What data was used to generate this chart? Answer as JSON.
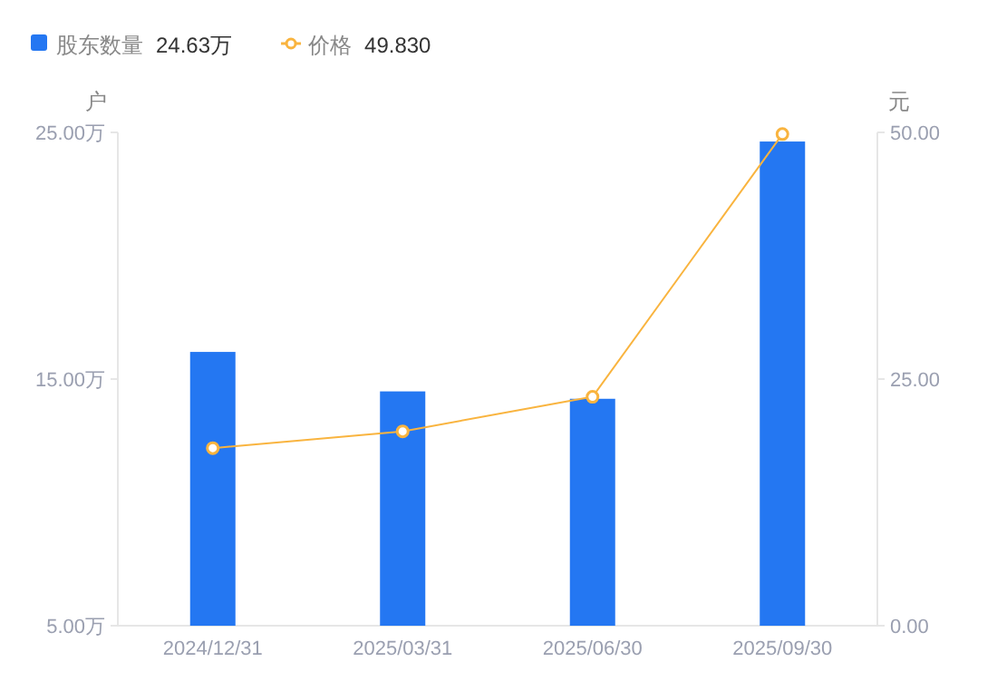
{
  "chart_data": {
    "type": "bar",
    "ylabel": "户",
    "y2label": "元",
    "categories": [
      "2024/12/31",
      "2025/03/31",
      "2025/06/30",
      "2025/09/30"
    ],
    "series": [
      {
        "name": "股东数量",
        "color": "#2477f2",
        "values": [
          16.1,
          14.5,
          14.2,
          24.63
        ]
      },
      {
        "name": "价格",
        "type": "line",
        "axis": "y2",
        "color": "#f9b43f",
        "marker": "circle",
        "values": [
          18.0,
          19.7,
          23.2,
          49.83
        ]
      }
    ],
    "annotations": [
      "24.63万",
      "49.830"
    ],
    "ylim": [
      5,
      25
    ],
    "yticks": [
      {
        "value": 5,
        "label": "5.00万"
      },
      {
        "value": 15,
        "label": "15.00万"
      },
      {
        "value": 25,
        "label": "25.00万"
      }
    ],
    "y2lim": [
      0,
      50
    ],
    "y2ticks": [
      {
        "value": 0,
        "label": "0.00"
      },
      {
        "value": 25,
        "label": "25.00"
      },
      {
        "value": 50,
        "label": "50.00"
      }
    ],
    "legend": "top left",
    "grid": false
  }
}
